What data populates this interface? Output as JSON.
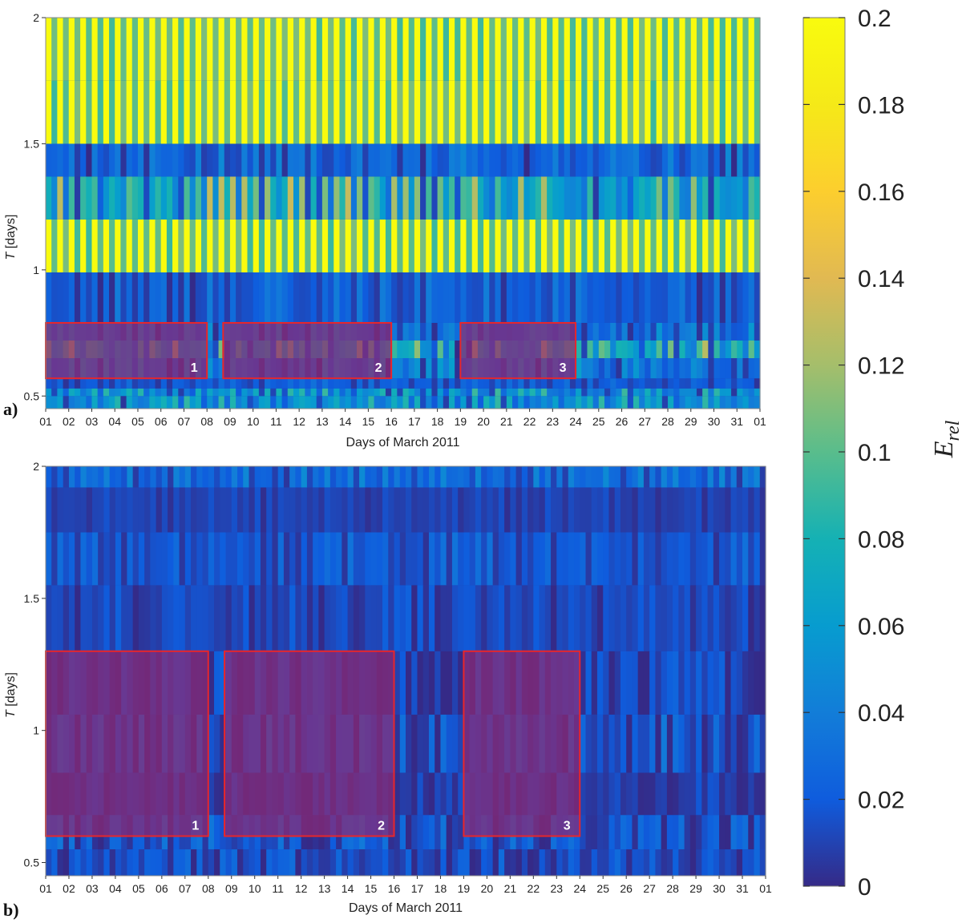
{
  "chart_data": [
    {
      "type": "heatmap",
      "panel_label": "a)",
      "xlabel": "Days of March 2011",
      "ylabel": "T [days]",
      "x_tick_labels": [
        "01",
        "02",
        "03",
        "04",
        "05",
        "06",
        "07",
        "08",
        "09",
        "10",
        "11",
        "12",
        "13",
        "14",
        "15",
        "16",
        "17",
        "18",
        "19",
        "20",
        "21",
        "22",
        "23",
        "24",
        "25",
        "26",
        "27",
        "28",
        "29",
        "30",
        "31",
        "01"
      ],
      "y_ticks": [
        0.5,
        1,
        1.5,
        2
      ],
      "y_tick_labels": [
        "0.5",
        "1",
        "1.5",
        "2"
      ],
      "ylim": [
        0.45,
        2
      ],
      "bands": [
        {
          "t_lo": 0.45,
          "t_hi": 0.5,
          "level": 0.05,
          "variability": 0.06
        },
        {
          "t_lo": 0.5,
          "t_hi": 0.53,
          "level": 0.05,
          "variability": 0.06
        },
        {
          "t_lo": 0.53,
          "t_hi": 0.57,
          "level": 0.02,
          "variability": 0.02
        },
        {
          "t_lo": 0.57,
          "t_hi": 0.65,
          "level": 0.03,
          "variability": 0.05
        },
        {
          "t_lo": 0.65,
          "t_hi": 0.72,
          "level": 0.06,
          "variability": 0.1
        },
        {
          "t_lo": 0.72,
          "t_hi": 0.79,
          "level": 0.03,
          "variability": 0.04
        },
        {
          "t_lo": 0.79,
          "t_hi": 0.99,
          "level": 0.02,
          "variability": 0.03
        },
        {
          "t_lo": 0.99,
          "t_hi": 1.2,
          "level": 0.2,
          "variability": 0.05
        },
        {
          "t_lo": 1.2,
          "t_hi": 1.37,
          "level": 0.07,
          "variability": 0.09
        },
        {
          "t_lo": 1.37,
          "t_hi": 1.5,
          "level": 0.02,
          "variability": 0.04
        },
        {
          "t_lo": 1.5,
          "t_hi": 1.75,
          "level": 0.2,
          "variability": 0.05
        },
        {
          "t_lo": 1.75,
          "t_hi": 2.0,
          "level": 0.2,
          "variability": 0.05
        }
      ],
      "highlight_boxes": [
        {
          "label": "1",
          "x_start": 1,
          "x_end": 8,
          "t_lo": 0.57,
          "t_hi": 0.79
        },
        {
          "label": "2",
          "x_start": 8.7,
          "x_end": 16,
          "t_lo": 0.57,
          "t_hi": 0.79
        },
        {
          "label": "3",
          "x_start": 19,
          "x_end": 24,
          "t_lo": 0.57,
          "t_hi": 0.79
        }
      ],
      "colormap": "parula",
      "clim": [
        0,
        0.2
      ]
    },
    {
      "type": "heatmap",
      "panel_label": "b)",
      "xlabel": "Days of March 2011",
      "ylabel": "T [days]",
      "x_tick_labels": [
        "01",
        "02",
        "03",
        "04",
        "05",
        "06",
        "07",
        "08",
        "09",
        "10",
        "11",
        "12",
        "13",
        "14",
        "15",
        "16",
        "17",
        "18",
        "19",
        "20",
        "21",
        "22",
        "23",
        "24",
        "25",
        "26",
        "27",
        "28",
        "29",
        "30",
        "31",
        "01"
      ],
      "y_ticks": [
        0.5,
        1,
        1.5,
        2
      ],
      "y_tick_labels": [
        "0.5",
        "1",
        "1.5",
        "2"
      ],
      "ylim": [
        0.45,
        2
      ],
      "bands": [
        {
          "t_lo": 0.45,
          "t_hi": 0.55,
          "level": 0.01,
          "variability": 0.03
        },
        {
          "t_lo": 0.55,
          "t_hi": 0.68,
          "level": 0.01,
          "variability": 0.04
        },
        {
          "t_lo": 0.68,
          "t_hi": 0.84,
          "level": 0.005,
          "variability": 0.02
        },
        {
          "t_lo": 0.84,
          "t_hi": 1.06,
          "level": 0.01,
          "variability": 0.04
        },
        {
          "t_lo": 1.06,
          "t_hi": 1.3,
          "level": 0.005,
          "variability": 0.03
        },
        {
          "t_lo": 1.3,
          "t_hi": 1.55,
          "level": 0.01,
          "variability": 0.02
        },
        {
          "t_lo": 1.55,
          "t_hi": 1.75,
          "level": 0.02,
          "variability": 0.02
        },
        {
          "t_lo": 1.75,
          "t_hi": 1.92,
          "level": 0.01,
          "variability": 0.01
        },
        {
          "t_lo": 1.92,
          "t_hi": 2.0,
          "level": 0.03,
          "variability": 0.03
        }
      ],
      "highlight_boxes": [
        {
          "label": "1",
          "x_start": 1,
          "x_end": 8,
          "t_lo": 0.6,
          "t_hi": 1.3
        },
        {
          "label": "2",
          "x_start": 8.7,
          "x_end": 16,
          "t_lo": 0.6,
          "t_hi": 1.3
        },
        {
          "label": "3",
          "x_start": 19,
          "x_end": 24,
          "t_lo": 0.6,
          "t_hi": 1.3
        }
      ],
      "colormap": "parula",
      "clim": [
        0,
        0.2
      ]
    }
  ],
  "colorbar": {
    "title": "E_rel",
    "ticks": [
      0,
      0.02,
      0.04,
      0.06,
      0.08,
      0.1,
      0.12,
      0.14,
      0.16,
      0.18,
      0.2
    ],
    "tick_labels": [
      "0",
      "0.02",
      "0.04",
      "0.06",
      "0.08",
      "0.1",
      "0.12",
      "0.14",
      "0.16",
      "0.18",
      "0.2"
    ],
    "colormap": "parula",
    "clim": [
      0,
      0.2
    ]
  },
  "colors": {
    "highlight_fill": "#8a2a74",
    "highlight_stroke": "#e8262b"
  }
}
